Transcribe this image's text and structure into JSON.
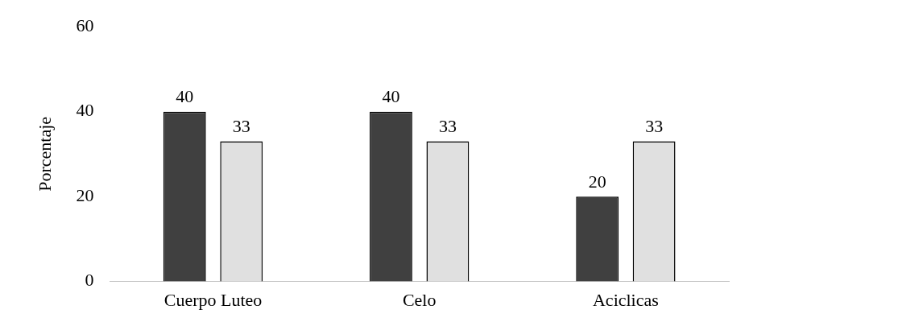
{
  "chart_data": {
    "type": "bar",
    "ylabel": "Porcentaje",
    "categories": [
      "Cuerpo Luteo",
      "Celo",
      "Aciclicas"
    ],
    "series": [
      {
        "color": "#404040",
        "values": [
          40,
          40,
          20
        ]
      },
      {
        "color": "#e0e0e0",
        "values": [
          33,
          33,
          33
        ]
      }
    ],
    "ylim": [
      0,
      60
    ],
    "yticks": [
      0,
      20,
      40,
      60
    ],
    "grid": false,
    "data_labels": true
  }
}
